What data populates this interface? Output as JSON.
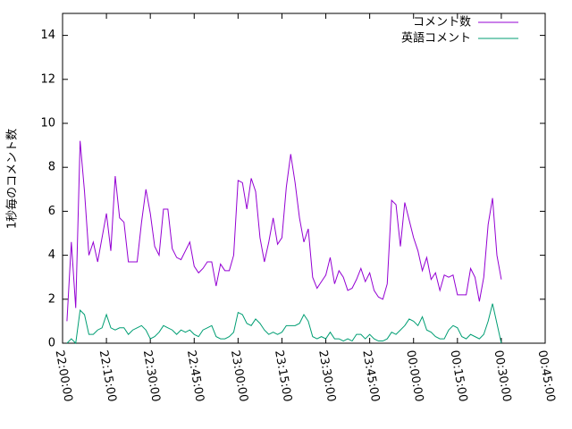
{
  "chart_data": {
    "type": "line",
    "ylabel": "1秒毎のコメント数",
    "x": [
      "22:01:30",
      "22:03:00",
      "22:04:30",
      "22:06:00",
      "22:07:30",
      "22:09:00",
      "22:10:30",
      "22:12:00",
      "22:13:30",
      "22:15:00",
      "22:16:30",
      "22:18:00",
      "22:19:30",
      "22:21:00",
      "22:22:30",
      "22:24:00",
      "22:25:30",
      "22:27:00",
      "22:28:30",
      "22:30:00",
      "22:31:30",
      "22:33:00",
      "22:34:30",
      "22:36:00",
      "22:37:30",
      "22:39:00",
      "22:40:30",
      "22:42:00",
      "22:43:30",
      "22:45:00",
      "22:46:30",
      "22:48:00",
      "22:49:30",
      "22:51:00",
      "22:52:30",
      "22:54:00",
      "22:55:30",
      "22:57:00",
      "22:58:30",
      "23:00:00",
      "23:01:30",
      "23:03:00",
      "23:04:30",
      "23:06:00",
      "23:07:30",
      "23:09:00",
      "23:10:30",
      "23:12:00",
      "23:13:30",
      "23:15:00",
      "23:16:30",
      "23:18:00",
      "23:19:30",
      "23:21:00",
      "23:22:30",
      "23:24:00",
      "23:25:30",
      "23:27:00",
      "23:28:30",
      "23:30:00",
      "23:31:30",
      "23:33:00",
      "23:34:30",
      "23:36:00",
      "23:37:30",
      "23:39:00",
      "23:40:30",
      "23:42:00",
      "23:43:30",
      "23:45:00",
      "23:46:30",
      "23:48:00",
      "23:49:30",
      "23:51:00",
      "23:52:30",
      "23:54:00",
      "23:55:30",
      "23:57:00",
      "23:58:30",
      "00:00:00",
      "00:01:30",
      "00:03:00",
      "00:04:30",
      "00:06:00",
      "00:07:30",
      "00:09:00",
      "00:10:30",
      "00:12:00",
      "00:13:30",
      "00:15:00",
      "00:16:30",
      "00:18:00",
      "00:19:30",
      "00:21:00",
      "00:22:30",
      "00:24:00",
      "00:25:30",
      "00:27:00",
      "00:28:30",
      "00:30:00"
    ],
    "series": [
      {
        "name": "コメント数",
        "color": "#9400d3",
        "values": [
          1.0,
          4.6,
          1.6,
          9.2,
          6.9,
          4.0,
          4.6,
          3.7,
          4.8,
          5.9,
          4.2,
          7.6,
          5.7,
          5.5,
          3.7,
          3.7,
          3.7,
          5.5,
          7.0,
          5.9,
          4.4,
          4.0,
          6.1,
          6.1,
          4.3,
          3.9,
          3.8,
          4.2,
          4.6,
          3.5,
          3.2,
          3.4,
          3.7,
          3.7,
          2.6,
          3.6,
          3.3,
          3.3,
          4.0,
          7.4,
          7.3,
          6.1,
          7.5,
          6.9,
          4.8,
          3.7,
          4.6,
          5.7,
          4.5,
          4.8,
          7.1,
          8.6,
          7.3,
          5.7,
          4.6,
          5.2,
          3.0,
          2.5,
          2.8,
          3.1,
          3.9,
          2.7,
          3.3,
          3.0,
          2.4,
          2.5,
          2.9,
          3.4,
          2.8,
          3.2,
          2.4,
          2.1,
          2.0,
          2.7,
          6.5,
          6.3,
          4.4,
          6.4,
          5.6,
          4.8,
          4.2,
          3.3,
          3.9,
          2.9,
          3.2,
          2.4,
          3.1,
          3.0,
          3.1,
          2.2,
          2.2,
          2.2,
          3.4,
          3.0,
          1.9,
          3.0,
          5.4,
          6.6,
          4.0,
          2.9
        ]
      },
      {
        "name": "英語コメント",
        "color": "#009e73",
        "values": [
          0.0,
          0.2,
          0.0,
          1.5,
          1.3,
          0.4,
          0.4,
          0.6,
          0.7,
          1.3,
          0.7,
          0.6,
          0.7,
          0.7,
          0.4,
          0.6,
          0.7,
          0.8,
          0.6,
          0.2,
          0.3,
          0.5,
          0.8,
          0.7,
          0.6,
          0.4,
          0.6,
          0.5,
          0.6,
          0.4,
          0.3,
          0.6,
          0.7,
          0.8,
          0.3,
          0.2,
          0.2,
          0.3,
          0.5,
          1.4,
          1.3,
          0.9,
          0.8,
          1.1,
          0.9,
          0.6,
          0.4,
          0.5,
          0.4,
          0.5,
          0.8,
          0.8,
          0.8,
          0.9,
          1.3,
          1.0,
          0.3,
          0.2,
          0.3,
          0.2,
          0.5,
          0.2,
          0.2,
          0.1,
          0.2,
          0.1,
          0.4,
          0.4,
          0.2,
          0.4,
          0.2,
          0.1,
          0.1,
          0.2,
          0.5,
          0.4,
          0.6,
          0.8,
          1.1,
          1.0,
          0.8,
          1.2,
          0.6,
          0.5,
          0.3,
          0.2,
          0.2,
          0.6,
          0.8,
          0.7,
          0.3,
          0.2,
          0.4,
          0.3,
          0.2,
          0.4,
          1.0,
          1.8,
          0.9,
          0.0
        ]
      }
    ],
    "xlim": [
      "22:00:00",
      "00:45:00"
    ],
    "xticks": [
      "22:00:00",
      "22:15:00",
      "22:30:00",
      "22:45:00",
      "23:00:00",
      "23:15:00",
      "23:30:00",
      "23:45:00",
      "00:00:00",
      "00:15:00",
      "00:30:00",
      "00:45:00"
    ],
    "ylim": [
      0,
      15
    ],
    "yticks": [
      0,
      2,
      4,
      6,
      8,
      10,
      12,
      14
    ],
    "legend": "top right",
    "grid": false
  }
}
